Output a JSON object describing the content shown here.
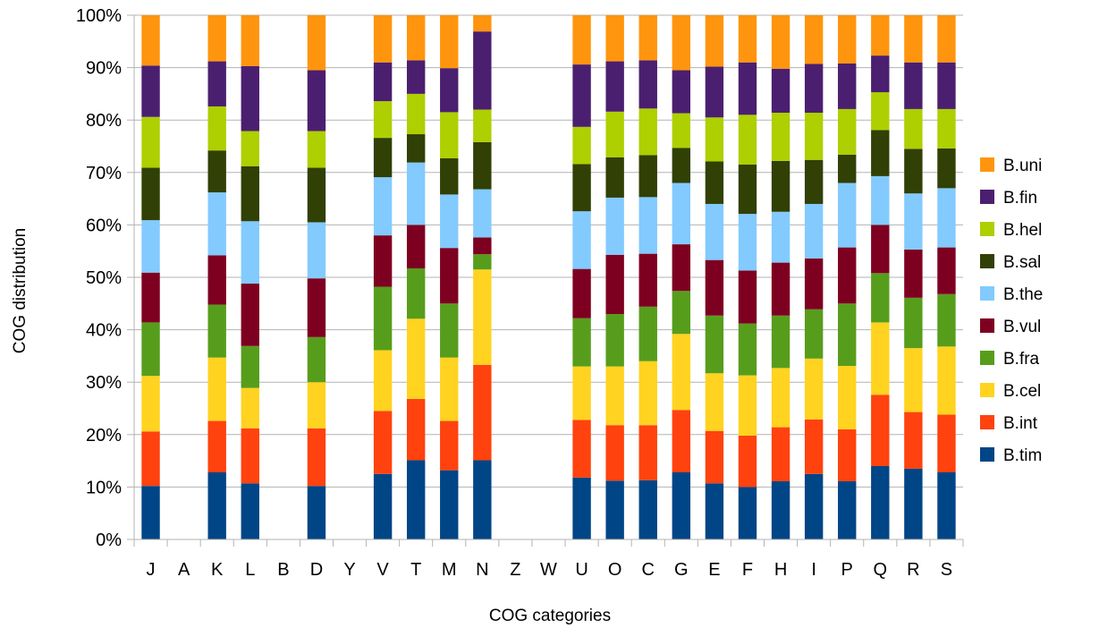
{
  "chart_data": {
    "type": "bar",
    "stacked": true,
    "percent": true,
    "title": "",
    "xlabel": "COG categories",
    "ylabel": "COG distribution",
    "ylim": [
      0,
      100
    ],
    "yticks": [
      "0%",
      "10%",
      "20%",
      "30%",
      "40%",
      "50%",
      "60%",
      "70%",
      "80%",
      "90%",
      "100%"
    ],
    "grid": true,
    "legend": "right",
    "categories": [
      "J",
      "A",
      "K",
      "L",
      "B",
      "D",
      "Y",
      "V",
      "T",
      "M",
      "N",
      "Z",
      "W",
      "U",
      "O",
      "C",
      "G",
      "E",
      "F",
      "H",
      "I",
      "P",
      "Q",
      "R",
      "S"
    ],
    "series": [
      {
        "name": "B.tim",
        "color": "#004586",
        "values": [
          10.2,
          0,
          12.8,
          10.7,
          0,
          10.2,
          0,
          12.5,
          15.1,
          13.2,
          15.1,
          0,
          0,
          11.8,
          11.2,
          11.3,
          12.8,
          10.7,
          10.0,
          11.1,
          12.5,
          11.1,
          14.0,
          13.5,
          12.8
        ]
      },
      {
        "name": "B.int",
        "color": "#ff420e",
        "values": [
          10.4,
          0,
          9.8,
          10.5,
          0,
          11.0,
          0,
          12.0,
          11.7,
          9.4,
          18.2,
          0,
          0,
          11.0,
          10.6,
          10.5,
          11.9,
          10.0,
          9.8,
          10.3,
          10.4,
          9.9,
          13.6,
          10.8,
          11.0
        ]
      },
      {
        "name": "B.cel",
        "color": "#ffd320",
        "values": [
          10.6,
          0,
          12.1,
          7.7,
          0,
          8.8,
          0,
          11.6,
          15.3,
          12.1,
          18.2,
          0,
          0,
          10.2,
          11.2,
          12.2,
          14.5,
          11.0,
          11.5,
          11.3,
          11.6,
          12.1,
          13.8,
          12.2,
          13.0
        ]
      },
      {
        "name": "B.fra",
        "color": "#579d1c",
        "values": [
          10.2,
          0,
          10.1,
          8.0,
          0,
          8.6,
          0,
          12.1,
          9.6,
          10.3,
          2.9,
          0,
          0,
          9.2,
          10.0,
          10.4,
          8.2,
          11.0,
          9.9,
          10.0,
          9.4,
          11.9,
          9.4,
          9.6,
          10.0
        ]
      },
      {
        "name": "B.vul",
        "color": "#7e0021",
        "values": [
          9.5,
          0,
          9.4,
          11.9,
          0,
          11.2,
          0,
          9.8,
          8.3,
          10.6,
          3.2,
          0,
          0,
          9.4,
          11.3,
          10.1,
          8.9,
          10.6,
          10.1,
          10.1,
          9.7,
          10.7,
          9.2,
          9.2,
          8.9
        ]
      },
      {
        "name": "B.the",
        "color": "#83caff",
        "values": [
          10.0,
          0,
          12.0,
          11.9,
          0,
          10.7,
          0,
          11.1,
          11.9,
          10.2,
          9.2,
          0,
          0,
          11.0,
          10.9,
          10.8,
          11.7,
          10.7,
          10.8,
          9.7,
          10.4,
          12.3,
          9.3,
          10.7,
          11.3
        ]
      },
      {
        "name": "B.sal",
        "color": "#314004",
        "values": [
          10.0,
          0,
          8.0,
          10.5,
          0,
          10.4,
          0,
          7.5,
          5.4,
          6.9,
          9.0,
          0,
          0,
          9.0,
          7.7,
          8.0,
          6.7,
          8.1,
          9.4,
          9.7,
          8.4,
          5.4,
          8.8,
          8.5,
          7.6
        ]
      },
      {
        "name": "B.hel",
        "color": "#aecf00",
        "values": [
          9.7,
          0,
          8.4,
          6.7,
          0,
          7.0,
          0,
          7.0,
          7.7,
          8.8,
          6.2,
          0,
          0,
          7.1,
          8.7,
          8.9,
          6.6,
          8.4,
          9.5,
          9.2,
          9.0,
          8.7,
          7.2,
          7.6,
          7.5
        ]
      },
      {
        "name": "B.fin",
        "color": "#4b1f6f",
        "values": [
          9.8,
          0,
          8.6,
          12.4,
          0,
          11.6,
          0,
          7.4,
          6.4,
          8.4,
          14.9,
          0,
          0,
          11.9,
          9.6,
          9.2,
          8.2,
          9.7,
          10.0,
          8.4,
          9.3,
          8.7,
          7.0,
          8.9,
          8.9
        ]
      },
      {
        "name": "B.uni",
        "color": "#ff950e",
        "values": [
          9.6,
          0,
          8.8,
          9.7,
          0,
          10.5,
          0,
          9.0,
          8.6,
          10.1,
          3.1,
          0,
          0,
          9.4,
          8.8,
          8.6,
          10.5,
          9.8,
          9.0,
          10.2,
          9.3,
          9.2,
          7.7,
          9.0,
          9.0
        ]
      }
    ]
  }
}
